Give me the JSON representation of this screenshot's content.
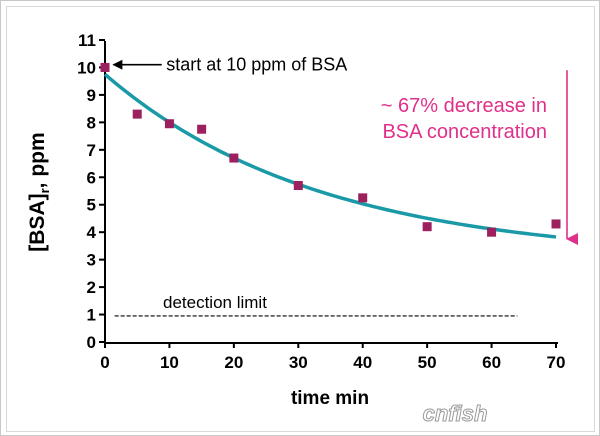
{
  "chart_data": {
    "type": "scatter",
    "xlabel": "time min",
    "ylabel": "[BSA]",
    "ylabel_sub": "r",
    "ylabel_suffix": ", ppm",
    "xlim": [
      0,
      70
    ],
    "ylim": [
      0,
      11
    ],
    "x_ticks": [
      "0",
      "10",
      "20",
      "30",
      "40",
      "50",
      "60",
      "70"
    ],
    "y_ticks": [
      "0",
      "1",
      "2",
      "3",
      "4",
      "5",
      "6",
      "7",
      "8",
      "9",
      "10",
      "11"
    ],
    "grid": false,
    "series": [
      {
        "kind": "points",
        "color": "#9c1f5e",
        "points": [
          {
            "x": 0,
            "y": 10.0
          },
          {
            "x": 5,
            "y": 8.3
          },
          {
            "x": 10,
            "y": 7.95
          },
          {
            "x": 15,
            "y": 7.75
          },
          {
            "x": 20,
            "y": 6.7
          },
          {
            "x": 30,
            "y": 5.7
          },
          {
            "x": 40,
            "y": 5.25
          },
          {
            "x": 50,
            "y": 4.2
          },
          {
            "x": 60,
            "y": 4.0
          },
          {
            "x": 70,
            "y": 4.3
          }
        ]
      },
      {
        "kind": "fit-curve",
        "color": "#1a9aa6",
        "model": "exponential decay",
        "y0": 9.75,
        "plateau": 3.0,
        "k": 0.03
      }
    ],
    "reference_line": {
      "y": 0.95,
      "label": "detection limit",
      "style": "dashed"
    },
    "annotations": {
      "start": {
        "text": "start at 10 ppm of BSA",
        "color": "#000000"
      },
      "decrease_line1": {
        "text": "~ 67% decrease in",
        "color": "#e0308a"
      },
      "decrease_line2": {
        "text": "BSA concentration",
        "color": "#e0308a"
      },
      "decrease_arrow": {
        "from_y": 9.9,
        "to_y": 3.75,
        "x": 71,
        "color": "#e0308a"
      }
    }
  },
  "watermark": {
    "text": "cnfish"
  }
}
